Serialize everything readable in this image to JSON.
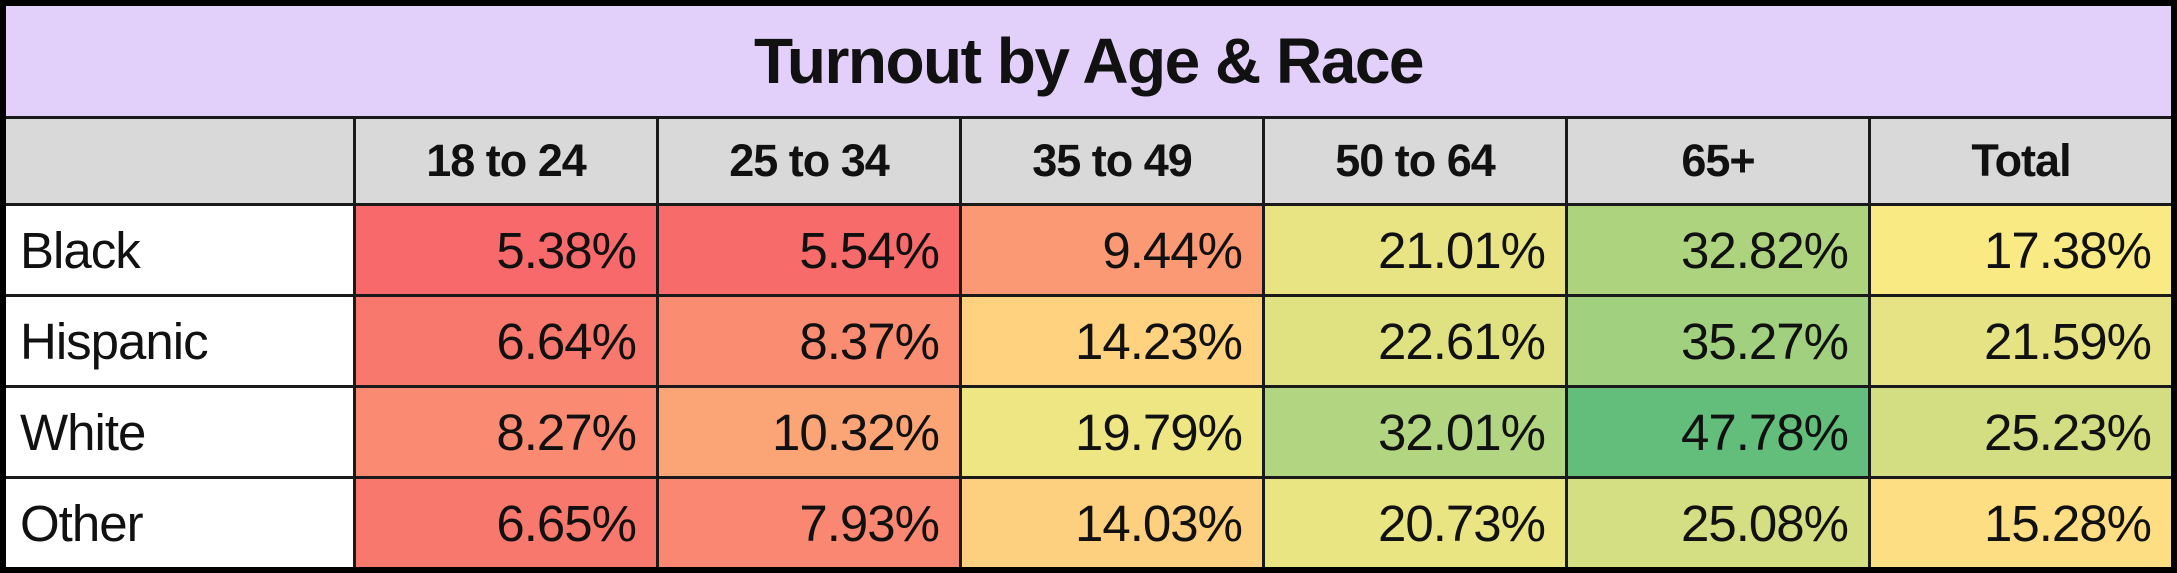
{
  "colors": {
    "title_bg": "#E2D0FB",
    "header_bg": "#D9D9D9",
    "row_label_bg": "#FFFFFF",
    "gridline": "#1A1A1A",
    "outer_border": "#000000",
    "text": "#111111"
  },
  "chart_data": {
    "type": "heatmap",
    "title": "Turnout by Age & Race",
    "columns": [
      "18 to 24",
      "25 to 34",
      "35 to 49",
      "50 to 64",
      "65+",
      "Total"
    ],
    "rows": [
      {
        "label": "Black",
        "values": [
          "5.38%",
          "5.54%",
          "9.44%",
          "21.01%",
          "32.82%",
          "17.38%"
        ],
        "values_numeric": [
          5.38,
          5.54,
          9.44,
          21.01,
          32.82,
          17.38
        ],
        "colors": [
          "#F8696B",
          "#F86B6B",
          "#FB9974",
          "#E8E483",
          "#ADD37F",
          "#FAEA84"
        ]
      },
      {
        "label": "Hispanic",
        "values": [
          "6.64%",
          "8.37%",
          "14.23%",
          "22.61%",
          "35.27%",
          "21.59%"
        ],
        "values_numeric": [
          6.64,
          8.37,
          14.23,
          22.61,
          35.27,
          21.59
        ],
        "colors": [
          "#F9786E",
          "#FA8C72",
          "#FED27F",
          "#E0E282",
          "#A1D07F",
          "#E5E383"
        ]
      },
      {
        "label": "White",
        "values": [
          "8.27%",
          "10.32%",
          "19.79%",
          "32.01%",
          "47.78%",
          "25.23%"
        ],
        "values_numeric": [
          8.27,
          10.32,
          19.79,
          32.01,
          47.78,
          25.23
        ],
        "colors": [
          "#FA8B72",
          "#FBA476",
          "#EEE683",
          "#B1D580",
          "#63BE7B",
          "#D3DE82"
        ]
      },
      {
        "label": "Other",
        "values": [
          "6.65%",
          "7.93%",
          "14.03%",
          "20.73%",
          "25.08%",
          "15.28%"
        ],
        "values_numeric": [
          6.65,
          7.93,
          14.03,
          20.73,
          25.08,
          15.28
        ],
        "colors": [
          "#F9786E",
          "#FA8771",
          "#FDD07F",
          "#E9E583",
          "#D4DE82",
          "#FEDE82"
        ]
      }
    ],
    "color_scale": {
      "type": "3-color",
      "min_color": "#F8696B",
      "mid_color": "#FFEB84",
      "max_color": "#63BE7B",
      "min_value": 5.38,
      "max_value": 47.78
    },
    "legend_position": "none",
    "grid": true
  }
}
